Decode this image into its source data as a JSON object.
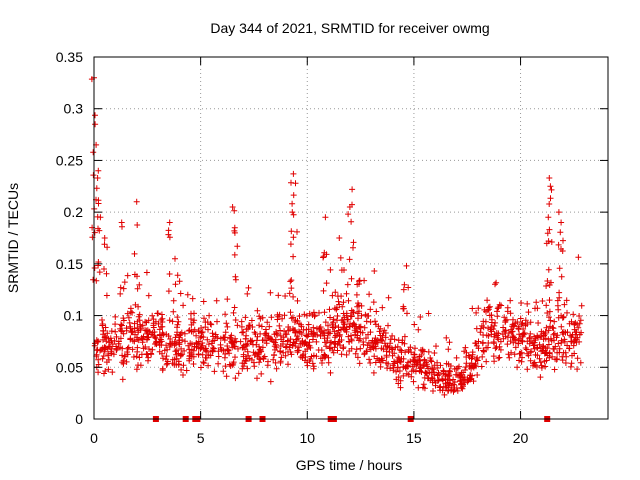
{
  "chart_data": {
    "type": "scatter",
    "title": "Day 344 of 2021, SRMTID for receiver owmg",
    "xlabel": "GPS time / hours",
    "ylabel": "SRMTID / TECUs",
    "xlim": [
      0,
      24.1
    ],
    "ylim": [
      0,
      0.35
    ],
    "xticks": [
      0,
      5,
      10,
      15,
      20
    ],
    "xtick_labels": [
      "0",
      "5",
      "10",
      "15",
      "20"
    ],
    "yticks": [
      0,
      0.05,
      0.1,
      0.15,
      0.2,
      0.25,
      0.3,
      0.35
    ],
    "ytick_labels": [
      "0",
      "0.05",
      "0.1",
      "0.15",
      "0.2",
      "0.25",
      "0.3",
      "0.35"
    ],
    "grid": true,
    "marker": "+",
    "series_color": "#e00000",
    "x_range_hours": [
      0,
      22.9
    ],
    "n_points": 1500,
    "baseline_profile": [
      [
        0,
        0.07
      ],
      [
        2,
        0.075
      ],
      [
        4,
        0.075
      ],
      [
        6,
        0.07
      ],
      [
        8,
        0.075
      ],
      [
        10,
        0.075
      ],
      [
        11.5,
        0.085
      ],
      [
        12.5,
        0.09
      ],
      [
        13.5,
        0.07
      ],
      [
        14.5,
        0.055
      ],
      [
        15.5,
        0.05
      ],
      [
        16.5,
        0.035
      ],
      [
        17.5,
        0.045
      ],
      [
        18.5,
        0.085
      ],
      [
        20,
        0.08
      ],
      [
        21,
        0.07
      ],
      [
        22,
        0.08
      ],
      [
        22.9,
        0.08
      ]
    ],
    "spikes": [
      {
        "x": 0.0,
        "y": 0.33
      },
      {
        "x": 0.05,
        "y": 0.285
      },
      {
        "x": 0.1,
        "y": 0.265
      },
      {
        "x": 0.2,
        "y": 0.24
      },
      {
        "x": 0.3,
        "y": 0.195
      },
      {
        "x": 0.5,
        "y": 0.175
      },
      {
        "x": 1.3,
        "y": 0.19
      },
      {
        "x": 2.0,
        "y": 0.21
      },
      {
        "x": 3.55,
        "y": 0.19
      },
      {
        "x": 3.8,
        "y": 0.155
      },
      {
        "x": 6.5,
        "y": 0.205
      },
      {
        "x": 6.6,
        "y": 0.185
      },
      {
        "x": 9.35,
        "y": 0.237
      },
      {
        "x": 9.45,
        "y": 0.228
      },
      {
        "x": 9.3,
        "y": 0.2
      },
      {
        "x": 10.85,
        "y": 0.195
      },
      {
        "x": 11.5,
        "y": 0.175
      },
      {
        "x": 12.1,
        "y": 0.222
      },
      {
        "x": 12.0,
        "y": 0.205
      },
      {
        "x": 14.65,
        "y": 0.148
      },
      {
        "x": 21.35,
        "y": 0.233
      },
      {
        "x": 21.4,
        "y": 0.225
      },
      {
        "x": 21.3,
        "y": 0.195
      },
      {
        "x": 21.8,
        "y": 0.2
      },
      {
        "x": 21.9,
        "y": 0.19
      }
    ],
    "zero_markers": [
      2.9,
      4.3,
      4.75,
      4.85,
      7.25,
      7.9,
      11.1,
      11.25,
      14.85,
      21.25
    ],
    "zero_marker_label": "square markers at y = 0"
  }
}
